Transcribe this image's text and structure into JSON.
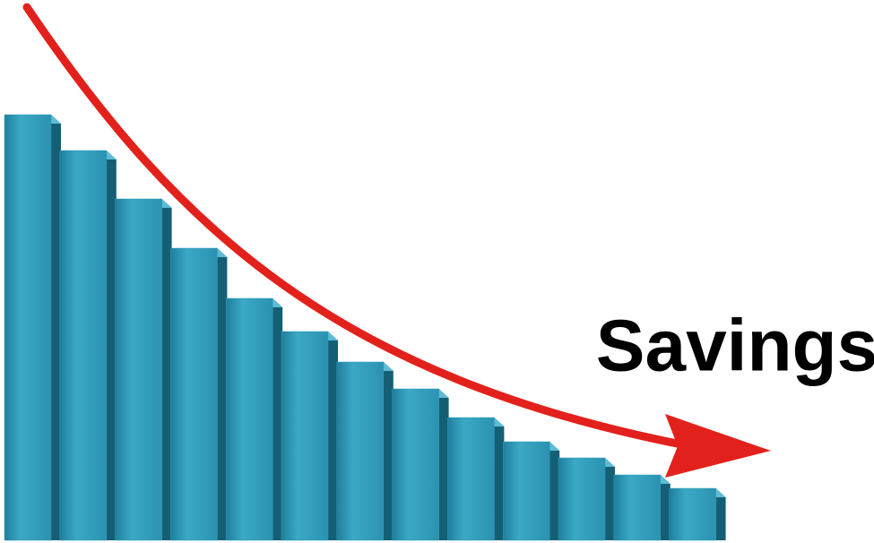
{
  "chart_data": {
    "type": "bar",
    "title": "Savings",
    "values": [
      475,
      435,
      381,
      326,
      270,
      233,
      199,
      169,
      137,
      110,
      92,
      73,
      58
    ],
    "color": "#2f9bb9",
    "ylim": [
      0,
      475
    ]
  }
}
